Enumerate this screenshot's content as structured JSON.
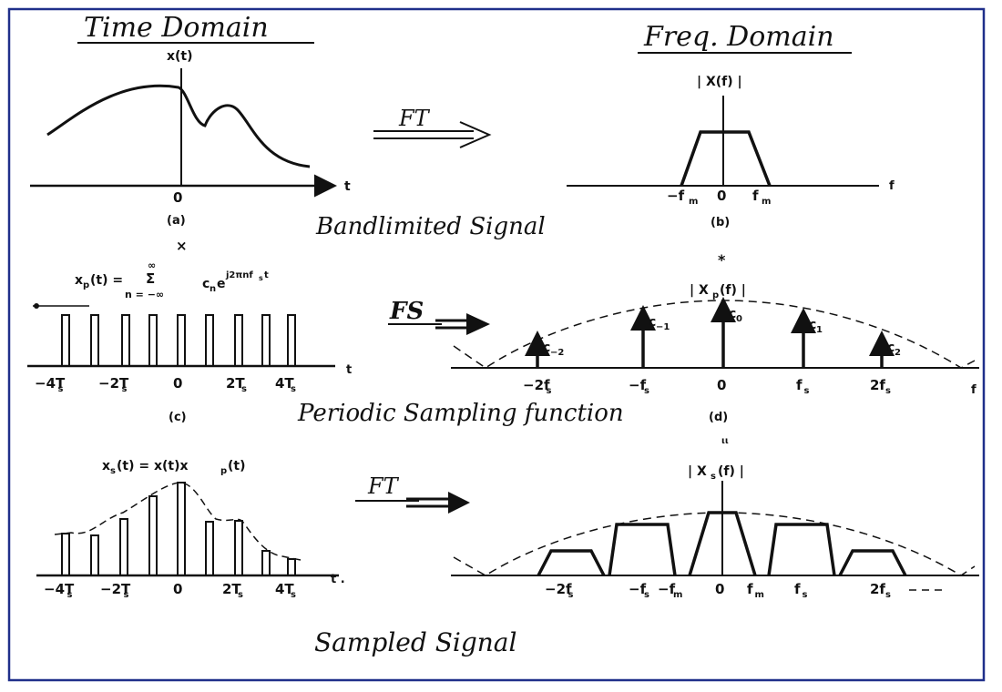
{
  "headings": {
    "time_domain": "Time Domain",
    "freq_domain": "Freq. Domain"
  },
  "row1": {
    "left_title": "x(t)",
    "axis_t": "t",
    "origin": "0",
    "caption_left": "(a)",
    "arrow_label": "FT",
    "right_title": "| X(f) |",
    "axis_f": "f",
    "ticks_right": [
      "−f",
      "0",
      "f"
    ],
    "tick_sub": "m",
    "caption_right": "(b)",
    "row_label": "Bandlimited Signal"
  },
  "row2": {
    "operator_left": "×",
    "operator_right": "*",
    "formula_lhs": "x",
    "formula_lhs_sub": "p",
    "formula_eq": "(t) =",
    "formula_sum_top": "∞",
    "formula_sum": "Σ",
    "formula_sum_bottom": "n = −∞",
    "formula_coeff": "c",
    "formula_coeff_sub": "n",
    "formula_exp": "e",
    "formula_exp_sup": "j2πnf",
    "formula_exp_sup_sub": "s",
    "formula_exp_sup_tail": "t",
    "ticks_left": [
      "−4T",
      "−2T",
      "0",
      "2T",
      "4T"
    ],
    "tick_sub": "s",
    "axis_t": "t",
    "caption_left": "(c)",
    "arrow_label": "FS",
    "right_title": "| X",
    "right_title_sub": "p",
    "right_title_tail": "(f) |",
    "coeffs": [
      {
        "base": "c",
        "sub": "−2"
      },
      {
        "base": "c",
        "sub": "−1"
      },
      {
        "base": "c",
        "sub": "0"
      },
      {
        "base": "c",
        "sub": "1"
      },
      {
        "base": "c",
        "sub": "2"
      }
    ],
    "ticks_right": [
      "−2f",
      "−f",
      "0",
      "f",
      "2f"
    ],
    "axis_f": "f",
    "caption_right": "(d)",
    "row_label": "Periodic Sampling function"
  },
  "row3": {
    "stray_mark": "ιι",
    "formula": "x",
    "formula_sub": "s",
    "formula_mid": "(t) = x(t)x",
    "formula_mid_sub": "p",
    "formula_tail": "(t)",
    "ticks_left": [
      "−4T",
      "−2T",
      "0",
      "2T",
      "4T"
    ],
    "tick_sub": "s",
    "axis_t": "t .",
    "arrow_label": "FT",
    "right_title": "| X",
    "right_title_sub": "s",
    "right_title_tail": "(f) |",
    "ticks_right": [
      "−2f",
      "−f",
      "−f",
      "0",
      "f",
      "f",
      "2f"
    ],
    "ticks_right_subs": [
      "s",
      "s",
      "m",
      "",
      "m",
      "s",
      "s"
    ],
    "row_label": "Sampled Signal"
  },
  "diagram": {
    "border_color": "#1f2f8a",
    "ink_color": "#111111"
  }
}
